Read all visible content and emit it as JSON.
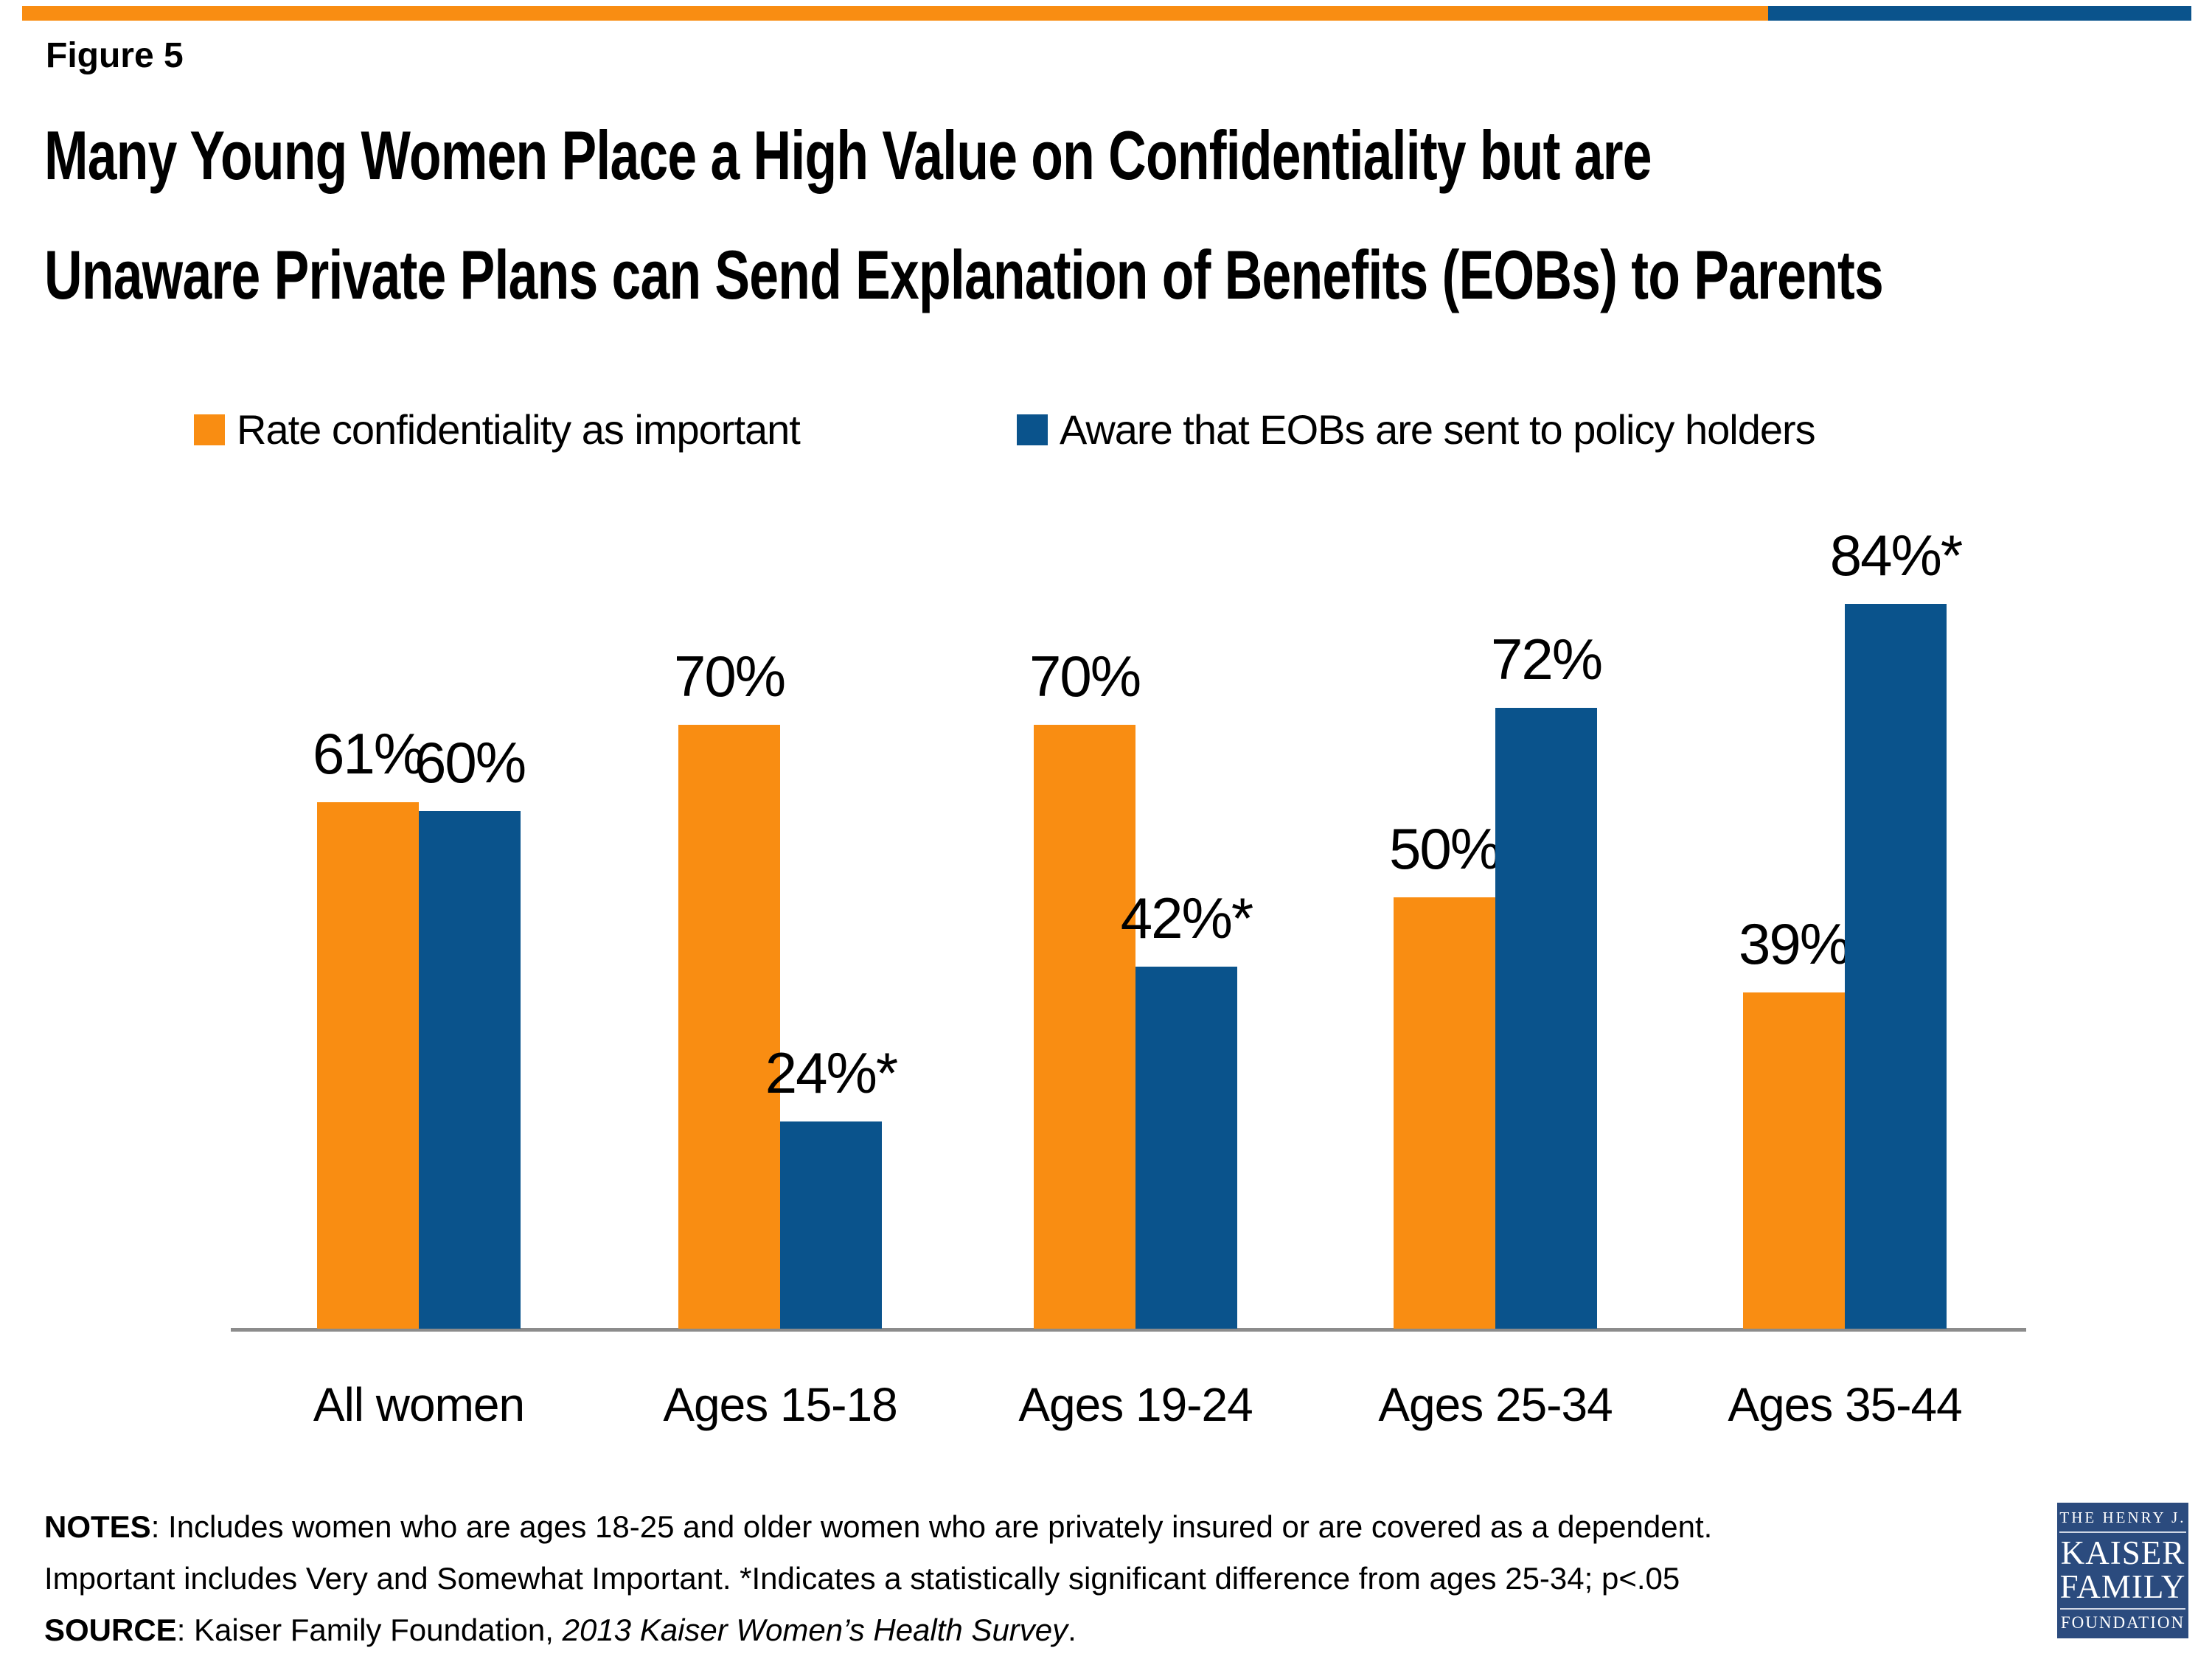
{
  "figure_label": "Figure 5",
  "title": {
    "line1": "Many Young Women Place a High Value on Confidentiality but are",
    "line2": "Unaware Private Plans can Send Explanation of Benefits (EOBs) to Parents"
  },
  "colors": {
    "orange": "#F98D12",
    "blue": "#0A538C",
    "axis": "#8C8C8C",
    "logo_navy": "#2B4B7E"
  },
  "chart_data": {
    "type": "bar",
    "title": "Many Young Women Place a High Value on Confidentiality but are Unaware Private Plans can Send Explanation of Benefits (EOBs) to Parents",
    "categories": [
      "All women",
      "Ages 15-18",
      "Ages 19-24",
      "Ages 25-34",
      "Ages 35-44"
    ],
    "series": [
      {
        "name": "Rate confidentiality as important",
        "color": "#F98D12",
        "values": [
          61,
          70,
          70,
          50,
          39
        ],
        "labels": [
          "61%",
          "70%",
          "70%",
          "50%",
          "39%"
        ]
      },
      {
        "name": "Aware that EOBs are sent to policy holders",
        "color": "#0A538C",
        "values": [
          60,
          24,
          42,
          72,
          84
        ],
        "labels": [
          "60%",
          "24%*",
          "42%*",
          "72%",
          "84%*"
        ]
      }
    ],
    "ylim": [
      0,
      100
    ],
    "grid": false,
    "legend_position": "top",
    "xlabel": "",
    "ylabel": ""
  },
  "notes": {
    "line1_bold": "NOTES",
    "line1_text": ": Includes women who are ages 18-25 and older women who are privately insured or are covered as a dependent.",
    "line2": "Important includes Very and Somewhat Important. *Indicates a statistically significant difference from ages 25-34; p<.05",
    "source_bold": "SOURCE",
    "source_text": ": Kaiser Family Foundation, ",
    "source_italic": "2013 Kaiser Women’s Health Survey",
    "source_period": "."
  },
  "logo": {
    "top": "THE HENRY J.",
    "kaiser": "KAISER",
    "family": "FAMILY",
    "foundation": "FOUNDATION"
  }
}
